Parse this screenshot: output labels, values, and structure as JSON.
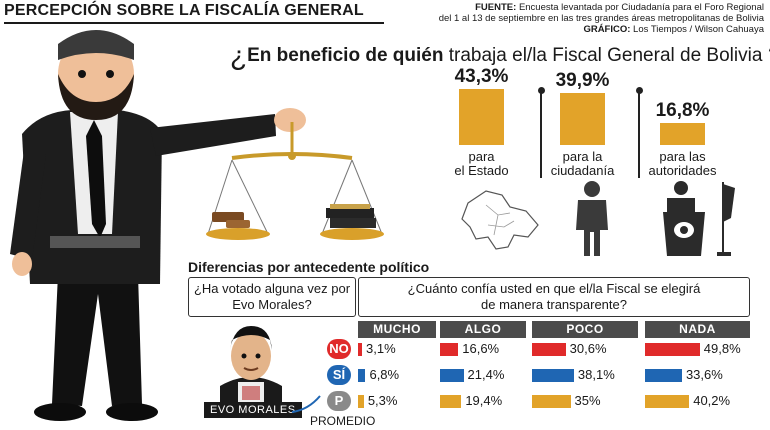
{
  "header": {
    "title": "PERCEPCIÓN SOBRE LA FISCALÍA GENERAL",
    "source_label": "FUENTE:",
    "source_line1": "Encuesta levantada por Ciudadanía para el Foro Regional",
    "source_line2": "del 1 al 13 de septiembre en las tres grandes áreas metropolitanas de Bolivia",
    "graphic_label": "GRÁFICO:",
    "graphic_credit": "Los Tiempos / Wilson Cahuaya"
  },
  "question": {
    "open_mark": "¿",
    "bold": "En beneficio de quién",
    "rest": " trabaja el/la Fiscal General de Bolivia",
    "close_mark": "?"
  },
  "panel2": {
    "subtitle": "Diferencias por antecedente político",
    "q1": "¿Ha votado alguna vez por Evo Morales?",
    "q2": "¿Cuánto confía usted en que el/la Fiscal se elegirá de manera transparente?",
    "person_tag": "EVO MORALES",
    "promedio_label": "PROMEDIO"
  },
  "colors": {
    "bar": "#e2a329",
    "red": "#e02a2a",
    "blue": "#1f66b3",
    "gray": "#8a8a8a"
  },
  "chart_data": [
    {
      "type": "bar",
      "categories": [
        "para el Estado",
        "para la ciudadanía",
        "para las autoridades"
      ],
      "category_lines": [
        [
          "para",
          "el Estado"
        ],
        [
          "para la",
          "ciudadanía"
        ],
        [
          "para las",
          "autoridades"
        ]
      ],
      "values": [
        43.3,
        39.9,
        16.8
      ],
      "value_labels": [
        "43,3%",
        "39,9%",
        "16,8%"
      ],
      "icons": [
        "bolivia-map-icon",
        "citizen-icon",
        "podium-icon"
      ]
    },
    {
      "type": "bar",
      "categories": [
        "MUCHO",
        "ALGO",
        "POCO",
        "NADA"
      ],
      "series": [
        {
          "name": "NO",
          "color": "#e02a2a",
          "values": [
            3.1,
            16.6,
            30.6,
            49.8
          ],
          "labels": [
            "3,1%",
            "16,6%",
            "30,6%",
            "49,8%"
          ]
        },
        {
          "name": "SÍ",
          "color": "#1f66b3",
          "values": [
            6.8,
            21.4,
            38.1,
            33.6
          ],
          "labels": [
            "6,8%",
            "21,4%",
            "38,1%",
            "33,6%"
          ]
        },
        {
          "name": "P",
          "color": "#e2a329",
          "values": [
            5.3,
            19.4,
            35,
            40.2
          ],
          "labels": [
            "5,3%",
            "19,4%",
            "35%",
            "40,2%"
          ]
        }
      ]
    }
  ]
}
